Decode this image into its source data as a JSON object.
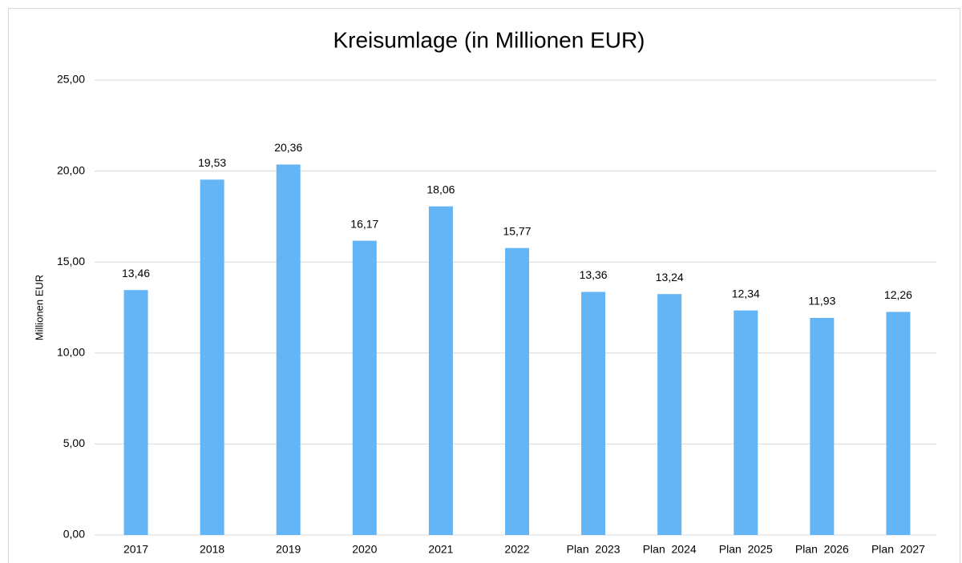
{
  "chart_data": {
    "type": "bar",
    "title": "Kreisumlage (in Millionen EUR)",
    "y_label": "Millionen EUR",
    "categories": [
      "2017",
      "2018",
      "2019",
      "2020",
      "2021",
      "2022",
      "Plan  2023",
      "Plan  2024",
      "Plan  2025",
      "Plan  2026",
      "Plan  2027"
    ],
    "values": [
      13.46,
      19.53,
      20.36,
      16.17,
      18.06,
      15.77,
      13.36,
      13.24,
      12.34,
      11.93,
      12.26
    ],
    "value_labels": [
      "13,46",
      "19,53",
      "20,36",
      "16,17",
      "18,06",
      "15,77",
      "13,36",
      "13,24",
      "12,34",
      "11,93",
      "12,26"
    ],
    "color": "#64b5f6",
    "ylim": [
      0,
      25
    ],
    "yticks": [
      {
        "value": 0,
        "label": "0,00"
      },
      {
        "value": 5,
        "label": "5,00"
      },
      {
        "value": 10,
        "label": "10,00"
      },
      {
        "value": 15,
        "label": "15,00"
      },
      {
        "value": 20,
        "label": "20,00"
      },
      {
        "value": 25,
        "label": "25,00"
      }
    ],
    "grid": true
  }
}
